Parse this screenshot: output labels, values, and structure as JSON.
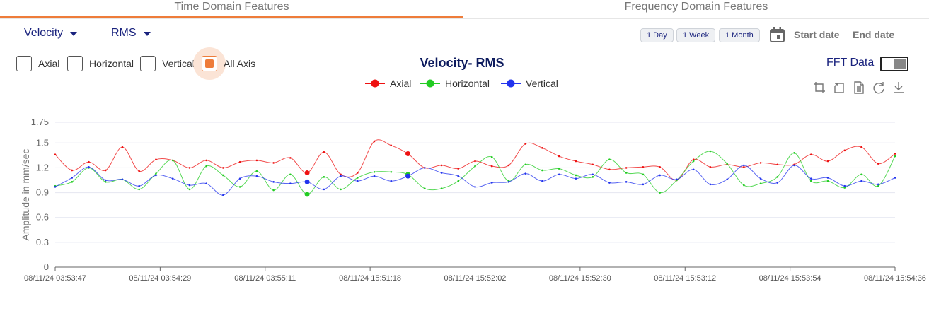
{
  "tabs": [
    {
      "label": "Time Domain Features",
      "active": true
    },
    {
      "label": "Frequency Domain Features",
      "active": false
    }
  ],
  "filters": {
    "parameter": "Velocity",
    "metric": "RMS"
  },
  "range_buttons": [
    "1 Day",
    "1 Week",
    "1 Month"
  ],
  "dates": {
    "start": "Start date",
    "end": "End date"
  },
  "axis_checkboxes": [
    {
      "label": "Axial",
      "checked": false
    },
    {
      "label": "Horizontal",
      "checked": false
    },
    {
      "label": "Vertical",
      "checked": false
    },
    {
      "label": "All Axis",
      "checked": true
    }
  ],
  "fft": {
    "label": "FFT Data",
    "on": false
  },
  "toolbar_icons": [
    "zoom-in-icon",
    "zoom-back-icon",
    "document-icon",
    "refresh-icon",
    "download-icon"
  ],
  "colors": {
    "accent": "#ee7c3a",
    "axial": "#ee1111",
    "horizontal": "#22cc22",
    "vertical": "#2233ee"
  },
  "chart_data": {
    "type": "line",
    "title": "Velocity- RMS",
    "ylabel": "Amplitude in mm/sec",
    "xlabel": "",
    "ylim": [
      0,
      1.75
    ],
    "yticks": [
      0,
      0.3,
      0.6,
      0.9,
      1.2,
      1.5,
      1.75
    ],
    "xtick_labels": [
      "08/11/24 03:53:47",
      "08/11/24 03:54:29",
      "08/11/24 03:55:11",
      "08/11/24 15:51:18",
      "08/11/24 15:52:02",
      "08/11/24 15:52:30",
      "08/11/24 15:53:12",
      "08/11/24 15:53:54",
      "08/11/24 15:54:36"
    ],
    "legend_position": "top-center",
    "grid": true,
    "highlight_index": [
      15,
      21
    ],
    "series": [
      {
        "name": "Axial",
        "color": "#ee1111",
        "values": [
          1.36,
          1.17,
          1.27,
          1.17,
          1.45,
          1.16,
          1.3,
          1.29,
          1.2,
          1.29,
          1.2,
          1.27,
          1.29,
          1.26,
          1.32,
          1.14,
          1.39,
          1.12,
          1.14,
          1.52,
          1.47,
          1.37,
          1.2,
          1.23,
          1.19,
          1.28,
          1.22,
          1.23,
          1.49,
          1.44,
          1.34,
          1.28,
          1.24,
          1.18,
          1.2,
          1.21,
          1.21,
          1.05,
          1.3,
          1.21,
          1.24,
          1.21,
          1.26,
          1.24,
          1.24,
          1.36,
          1.28,
          1.41,
          1.45,
          1.25,
          1.37
        ]
      },
      {
        "name": "Horizontal",
        "color": "#22cc22",
        "values": [
          0.98,
          1.03,
          1.2,
          1.03,
          1.06,
          0.94,
          1.13,
          1.29,
          0.94,
          1.22,
          1.11,
          0.97,
          1.16,
          0.93,
          1.12,
          0.88,
          1.09,
          0.94,
          1.08,
          1.15,
          1.15,
          1.12,
          0.95,
          0.95,
          1.04,
          1.22,
          1.33,
          1.04,
          1.24,
          1.17,
          1.19,
          1.11,
          1.09,
          1.3,
          1.14,
          1.12,
          0.9,
          1.05,
          1.28,
          1.4,
          1.25,
          0.99,
          1.01,
          1.09,
          1.38,
          1.04,
          1.04,
          0.96,
          1.12,
          0.98,
          1.34
        ]
      },
      {
        "name": "Vertical",
        "color": "#2233ee",
        "values": [
          0.97,
          1.08,
          1.21,
          1.05,
          1.06,
          0.98,
          1.11,
          1.07,
          0.99,
          1.01,
          0.87,
          1.07,
          1.1,
          1.03,
          1.01,
          1.03,
          0.94,
          1.1,
          1.04,
          1.1,
          1.04,
          1.1,
          1.2,
          1.14,
          1.1,
          0.97,
          1.02,
          1.03,
          1.13,
          1.04,
          1.12,
          1.07,
          1.12,
          1.02,
          1.03,
          1.0,
          1.11,
          1.06,
          1.18,
          1.0,
          1.06,
          1.23,
          1.07,
          1.02,
          1.23,
          1.07,
          1.08,
          0.98,
          1.04,
          1.0,
          1.08
        ]
      }
    ]
  }
}
